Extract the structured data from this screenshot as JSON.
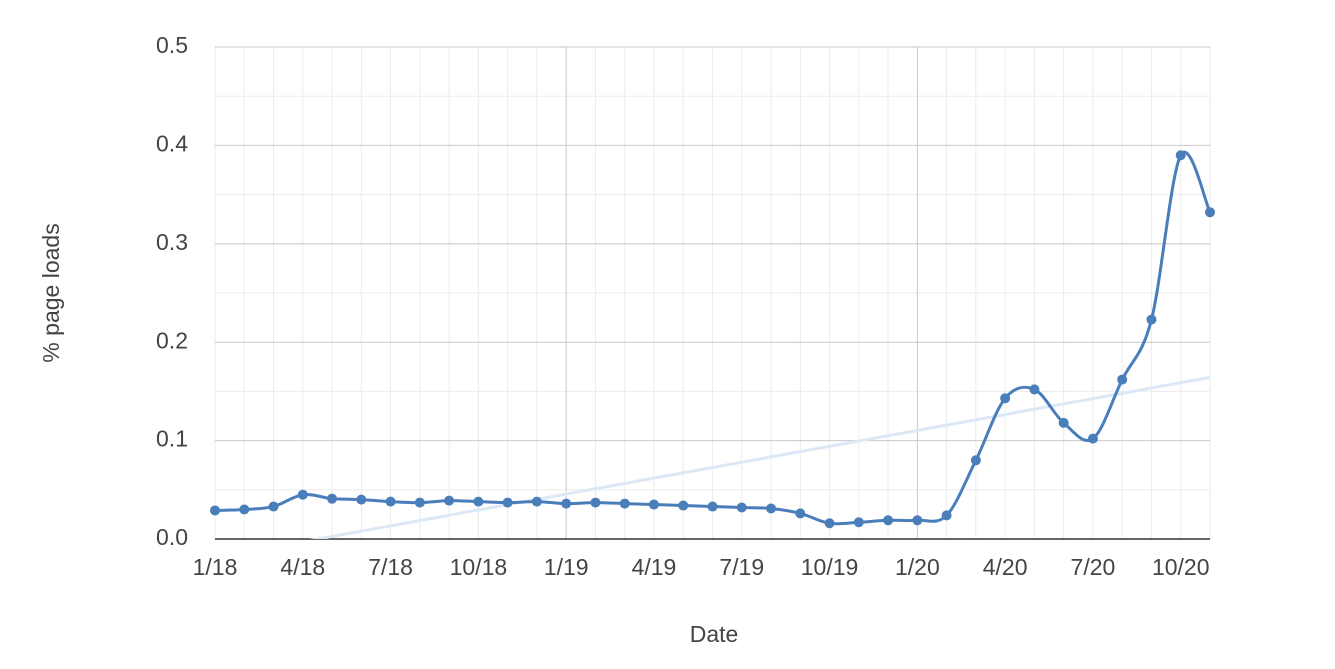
{
  "chart_data": {
    "type": "line",
    "x_label": "Date",
    "y_label": "% page loads",
    "categories": [
      "1/18",
      null,
      null,
      "4/18",
      null,
      null,
      "7/18",
      null,
      null,
      "10/18",
      null,
      null,
      "1/19",
      null,
      null,
      "4/19",
      null,
      null,
      "7/19",
      null,
      null,
      "10/19",
      null,
      null,
      "1/20",
      null,
      null,
      "4/20",
      null,
      null,
      "7/20",
      null,
      null,
      "10/20",
      null
    ],
    "values": [
      0.029,
      0.03,
      0.033,
      0.045,
      0.041,
      0.04,
      0.038,
      0.037,
      0.039,
      0.038,
      0.037,
      0.038,
      0.036,
      0.037,
      0.036,
      0.035,
      0.034,
      0.033,
      0.032,
      0.031,
      0.026,
      0.016,
      0.017,
      0.019,
      0.019,
      0.024,
      0.08,
      0.143,
      0.152,
      0.118,
      0.102,
      0.162,
      0.223,
      0.39,
      0.332
    ],
    "color": "#4a7ebb",
    "trendline_color": "#dce8f6",
    "trendline": true,
    "smooth": true,
    "ylim": [
      0,
      0.5
    ],
    "yticks": [
      {
        "value": 0,
        "label": "0.0"
      },
      0.1,
      0.2,
      0.3,
      0.4,
      0.5
    ],
    "minor_yticks": [
      0.05,
      0.15,
      0.25,
      0.35,
      0.45
    ],
    "grid": true
  }
}
